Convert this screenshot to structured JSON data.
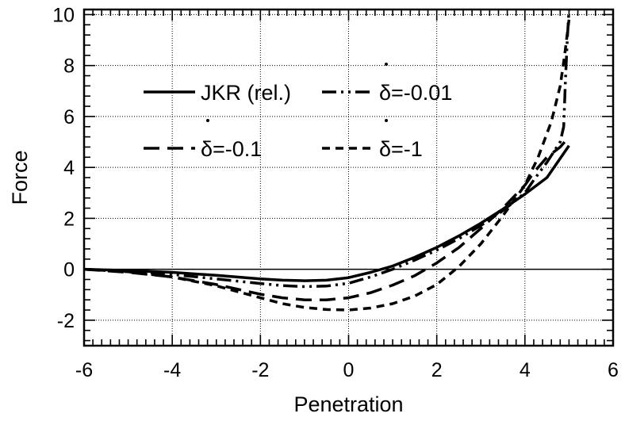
{
  "chart_data": {
    "type": "line",
    "title": "",
    "xlabel": "Penetration",
    "ylabel": "Force",
    "xlim": [
      -6,
      6
    ],
    "ylim": [
      -3,
      10.2
    ],
    "x_ticks": [
      "-6",
      "-4",
      "-2",
      "0",
      "2",
      "4",
      "6"
    ],
    "y_ticks": [
      "-2",
      "0",
      "2",
      "4",
      "6",
      "8",
      "10"
    ],
    "x_tick_values": [
      -6,
      -4,
      -2,
      0,
      2,
      4,
      6
    ],
    "y_tick_values": [
      -2,
      0,
      2,
      4,
      6,
      8,
      10
    ],
    "grid": true,
    "legend_position": "upper-left",
    "legend": [
      {
        "name": "JKR (rel.)"
      },
      {
        "name": "δ=-0.01"
      },
      {
        "name": "δ=-0.1"
      },
      {
        "name": "δ=-1"
      }
    ],
    "series": [
      {
        "style": "solid",
        "x": [
          -6,
          -5,
          -4,
          -3,
          -2,
          -1.5,
          -1,
          -0.5,
          0,
          0.5,
          1,
          1.5,
          2,
          2.5,
          3,
          3.5,
          4,
          4.5,
          5
        ],
        "y": [
          0,
          -0.05,
          -0.12,
          -0.24,
          -0.38,
          -0.43,
          -0.45,
          -0.43,
          -0.33,
          -0.12,
          0.13,
          0.47,
          0.86,
          1.31,
          1.81,
          2.36,
          2.95,
          3.6,
          4.85
        ]
      },
      {
        "style": "dash-dot-dot",
        "x": [
          -6,
          -5,
          -4,
          -3,
          -2,
          -1.5,
          -1,
          -0.5,
          0,
          0.5,
          1,
          1.5,
          2,
          2.5,
          3,
          3.5,
          4,
          4.2,
          4.5,
          4.8,
          4.88,
          4.92,
          4.96,
          5.0
        ],
        "y": [
          0,
          -0.08,
          -0.2,
          -0.38,
          -0.56,
          -0.64,
          -0.68,
          -0.66,
          -0.55,
          -0.3,
          0,
          0.36,
          0.75,
          1.2,
          1.72,
          2.3,
          3.0,
          3.5,
          4.2,
          5.0,
          5.6,
          7.5,
          9.0,
          10.2
        ]
      },
      {
        "style": "long-dash",
        "x": [
          -6,
          -5,
          -4,
          -3,
          -2,
          -1.5,
          -1,
          -0.5,
          0,
          0.5,
          1,
          1.5,
          2,
          2.5,
          3,
          3.5,
          4,
          4.2,
          4.5,
          4.8,
          4.9,
          5.0
        ],
        "y": [
          0,
          -0.12,
          -0.3,
          -0.6,
          -0.98,
          -1.12,
          -1.2,
          -1.2,
          -1.12,
          -0.92,
          -0.62,
          -0.25,
          0.25,
          0.85,
          1.6,
          2.4,
          3.3,
          3.8,
          4.4,
          4.8,
          5.0,
          5.2
        ]
      },
      {
        "style": "short-dash",
        "x": [
          -6,
          -5,
          -4,
          -3,
          -2,
          -1.5,
          -1,
          -0.5,
          0,
          0.5,
          1,
          1.5,
          2,
          2.5,
          3,
          3.5,
          4,
          4.3,
          4.6,
          4.8,
          4.9,
          5.0
        ],
        "y": [
          0,
          -0.1,
          -0.3,
          -0.65,
          -1.12,
          -1.35,
          -1.5,
          -1.58,
          -1.6,
          -1.52,
          -1.35,
          -1.05,
          -0.6,
          0.1,
          1.0,
          2.1,
          3.3,
          4.4,
          5.8,
          7.2,
          8.4,
          9.8
        ]
      }
    ]
  }
}
